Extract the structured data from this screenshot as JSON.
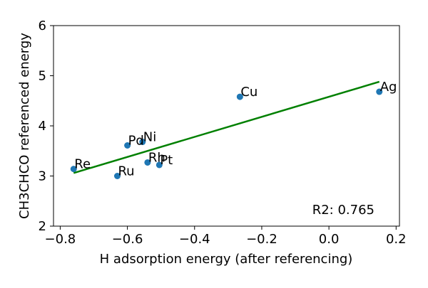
{
  "chart_data": {
    "type": "scatter",
    "xlabel": "H adsorption energy (after referencing)",
    "ylabel": "CH3CHCO referenced energy",
    "xlim": [
      -0.82,
      0.21
    ],
    "ylim": [
      2,
      6
    ],
    "x_ticks": [
      -0.8,
      -0.6,
      -0.4,
      -0.2,
      0.0,
      0.2
    ],
    "x_tick_labels": [
      "−0.8",
      "−0.6",
      "−0.4",
      "−0.2",
      "0.0",
      "0.2"
    ],
    "y_ticks": [
      2,
      3,
      4,
      5,
      6
    ],
    "y_tick_labels": [
      "2",
      "3",
      "4",
      "5",
      "6"
    ],
    "grid": false,
    "points": [
      {
        "label": "Re",
        "x": -0.76,
        "y": 3.14
      },
      {
        "label": "Ru",
        "x": -0.63,
        "y": 3.0
      },
      {
        "label": "Pd",
        "x": -0.6,
        "y": 3.61
      },
      {
        "label": "Ni",
        "x": -0.555,
        "y": 3.68
      },
      {
        "label": "Rh",
        "x": -0.54,
        "y": 3.27
      },
      {
        "label": "Pt",
        "x": -0.505,
        "y": 3.22
      },
      {
        "label": "Cu",
        "x": -0.265,
        "y": 4.58
      },
      {
        "label": "Ag",
        "x": 0.15,
        "y": 4.68
      }
    ],
    "fit_line": {
      "x": [
        -0.76,
        0.15
      ],
      "y": [
        3.06,
        4.88
      ]
    },
    "annotation": "R2: 0.765",
    "colors": {
      "points": "#1f77b4",
      "fit_line": "#008000"
    }
  }
}
